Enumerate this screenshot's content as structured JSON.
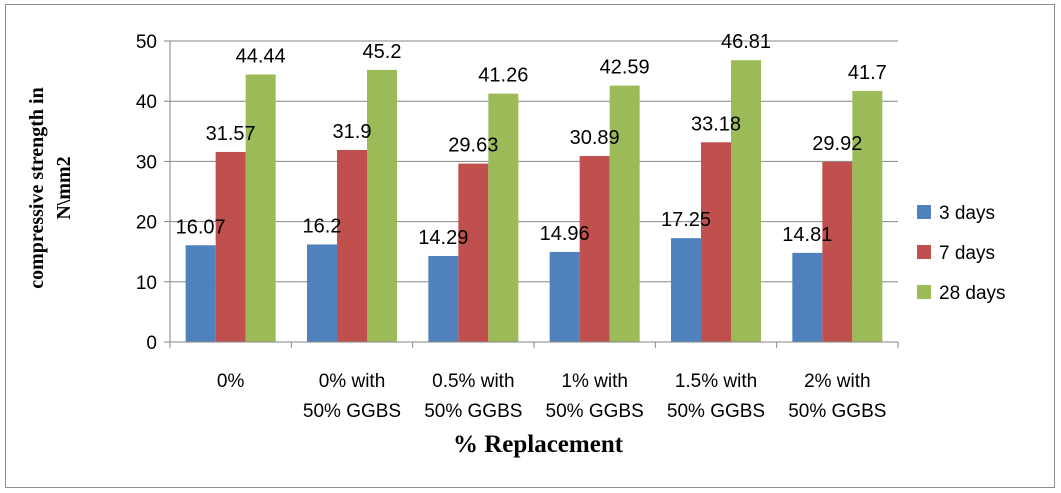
{
  "chart_data": {
    "type": "bar",
    "categories": [
      [
        "0%"
      ],
      [
        "0% with",
        "50% GGBS"
      ],
      [
        "0.5% with",
        "50% GGBS"
      ],
      [
        "1% with",
        "50% GGBS"
      ],
      [
        "1.5% with",
        "50% GGBS"
      ],
      [
        "2% with",
        "50% GGBS"
      ]
    ],
    "series": [
      {
        "name": "3 days",
        "color": "#4f81bd",
        "values": [
          16.07,
          16.2,
          14.29,
          14.96,
          17.25,
          14.81
        ],
        "labels": [
          "16.07",
          "16.2",
          "14.29",
          "14.96",
          "17.25",
          "14.81"
        ]
      },
      {
        "name": "7 days",
        "color": "#c0504d",
        "values": [
          31.57,
          31.9,
          29.63,
          30.89,
          33.18,
          29.92
        ],
        "labels": [
          "31.57",
          "31.9",
          "29.63",
          "30.89",
          "33.18",
          "29.92"
        ]
      },
      {
        "name": "28 days",
        "color": "#9bbb59",
        "values": [
          44.44,
          45.2,
          41.26,
          42.59,
          46.81,
          41.7
        ],
        "labels": [
          "44.44",
          "45.2",
          "41.26",
          "42.59",
          "46.81",
          "41.7"
        ]
      }
    ],
    "xlabel": "% Replacement",
    "ylabel": [
      "compressive strength in",
      "N\\mm2"
    ],
    "ylim": [
      0,
      50
    ],
    "yticks": [
      0,
      10,
      20,
      30,
      40,
      50
    ],
    "grid": true,
    "legend_position": "right"
  }
}
